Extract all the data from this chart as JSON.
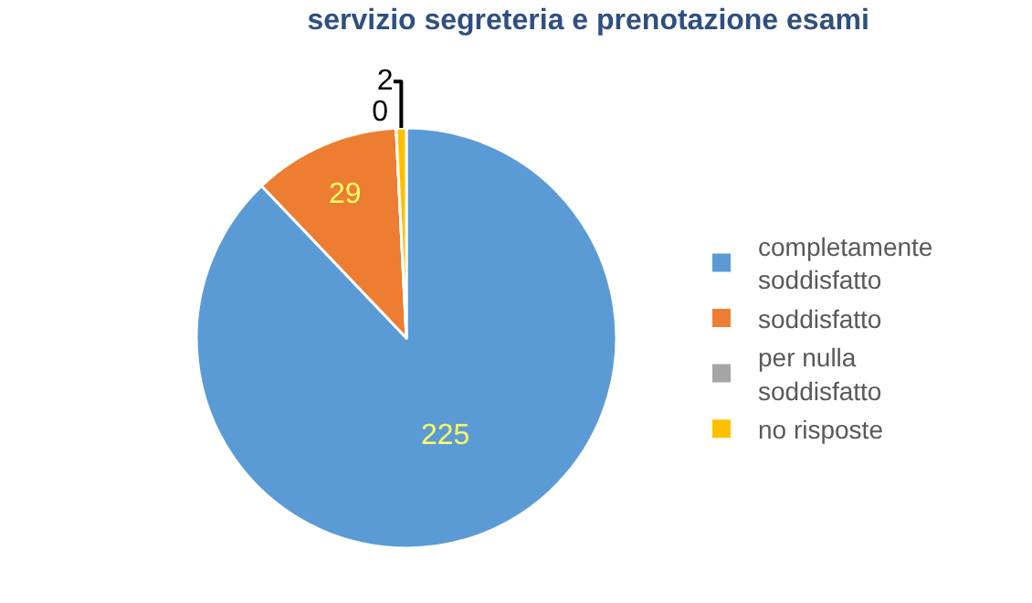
{
  "chart_data": {
    "type": "pie",
    "title": "servizio segreteria e prenotazione esami",
    "categories": [
      "completamente soddisfatto",
      "soddisfatto",
      "per nulla soddisfatto",
      "no risposte"
    ],
    "values": [
      225,
      29,
      0,
      2
    ],
    "value_labels": [
      "225",
      "29",
      "0",
      "2"
    ],
    "colors": [
      "#5b9bd5",
      "#ed7d31",
      "#a5a5a5",
      "#ffc000"
    ],
    "legend": "right"
  }
}
